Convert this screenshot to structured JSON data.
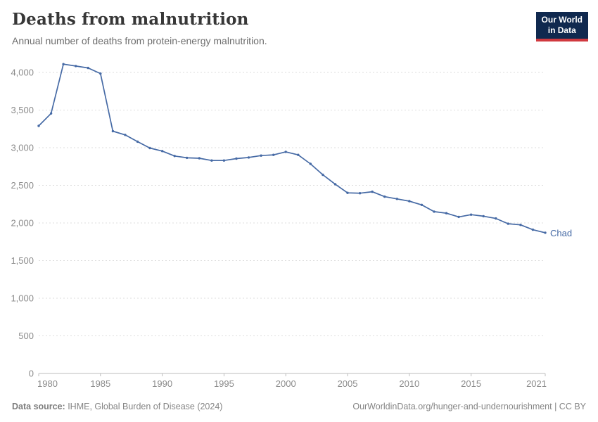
{
  "header": {
    "logo_line1": "Our World",
    "logo_line2": "in Data"
  },
  "chart_data": {
    "type": "line",
    "title": "Deaths from malnutrition",
    "subtitle": "Annual number of deaths from protein-energy malnutrition.",
    "xlabel": "",
    "ylabel": "",
    "xlim": [
      1980,
      2021
    ],
    "ylim": [
      0,
      4000
    ],
    "grid": "horizontal-dashed",
    "legend_position": "end-of-line-label",
    "xticks": [
      1980,
      1985,
      1990,
      1995,
      2000,
      2005,
      2010,
      2015,
      2021
    ],
    "yticks": [
      0,
      500,
      1000,
      1500,
      2000,
      2500,
      3000,
      3500,
      4000
    ],
    "x": [
      1980,
      1981,
      1982,
      1983,
      1984,
      1985,
      1986,
      1987,
      1988,
      1989,
      1990,
      1991,
      1992,
      1993,
      1994,
      1995,
      1996,
      1997,
      1998,
      1999,
      2000,
      2001,
      2002,
      2003,
      2004,
      2005,
      2006,
      2007,
      2008,
      2009,
      2010,
      2011,
      2012,
      2013,
      2014,
      2015,
      2016,
      2017,
      2018,
      2019,
      2020,
      2021
    ],
    "series": [
      {
        "name": "Chad",
        "color": "#466aa5",
        "values": [
          3290,
          3455,
          4110,
          4085,
          4060,
          3985,
          3220,
          3170,
          3080,
          2995,
          2955,
          2890,
          2865,
          2860,
          2830,
          2830,
          2855,
          2870,
          2895,
          2905,
          2945,
          2905,
          2785,
          2640,
          2515,
          2400,
          2395,
          2415,
          2350,
          2320,
          2290,
          2240,
          2150,
          2130,
          2080,
          2110,
          2090,
          2060,
          1990,
          1975,
          1910,
          1870
        ]
      }
    ],
    "colors": {
      "gridline": "#dedede",
      "axis_line": "#bcbcbc",
      "tick_label": "#8b8b8b"
    }
  },
  "footer": {
    "source_label": "Data source:",
    "source_text": " IHME, Global Burden of Disease (2024)",
    "credit": "OurWorldinData.org/hunger-and-undernourishment | CC BY"
  }
}
